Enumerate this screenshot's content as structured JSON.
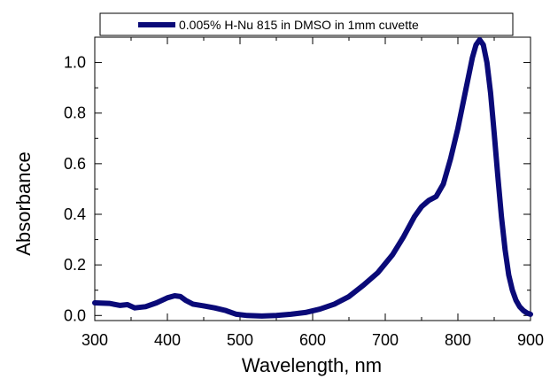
{
  "chart_data": {
    "type": "line",
    "xlabel": "Wavelength, nm",
    "ylabel": "Absorbance",
    "xlim": [
      300,
      900
    ],
    "ylim": [
      -0.02,
      1.1
    ],
    "x_ticks": [
      300,
      400,
      500,
      600,
      700,
      800,
      900
    ],
    "x_tick_labels": [
      "300",
      "400",
      "500",
      "600",
      "700",
      "800",
      "900"
    ],
    "y_ticks": [
      0.0,
      0.2,
      0.4,
      0.6,
      0.8,
      1.0
    ],
    "y_tick_labels": [
      "0.0",
      "0.2",
      "0.4",
      "0.6",
      "0.8",
      "1.0"
    ],
    "grid": false,
    "legend_position": "top",
    "series": [
      {
        "name": "0.005% H-Nu 815 in DMSO in 1mm cuvette",
        "color": "#0a0a78",
        "x": [
          300,
          320,
          335,
          345,
          355,
          370,
          385,
          400,
          410,
          418,
          425,
          435,
          450,
          465,
          480,
          495,
          510,
          530,
          550,
          570,
          590,
          610,
          630,
          650,
          670,
          690,
          710,
          725,
          740,
          750,
          760,
          770,
          780,
          790,
          800,
          810,
          820,
          825,
          830,
          835,
          840,
          845,
          850,
          855,
          860,
          865,
          870,
          875,
          880,
          885,
          890,
          895,
          900
        ],
        "y": [
          0.05,
          0.048,
          0.04,
          0.043,
          0.03,
          0.035,
          0.05,
          0.07,
          0.078,
          0.075,
          0.06,
          0.045,
          0.038,
          0.03,
          0.02,
          0.005,
          0.0,
          -0.002,
          0.0,
          0.005,
          0.012,
          0.025,
          0.045,
          0.075,
          0.12,
          0.17,
          0.24,
          0.31,
          0.39,
          0.43,
          0.455,
          0.47,
          0.52,
          0.62,
          0.74,
          0.88,
          1.02,
          1.07,
          1.09,
          1.07,
          1.0,
          0.88,
          0.72,
          0.55,
          0.39,
          0.26,
          0.16,
          0.1,
          0.06,
          0.035,
          0.02,
          0.01,
          0.005
        ]
      }
    ]
  }
}
